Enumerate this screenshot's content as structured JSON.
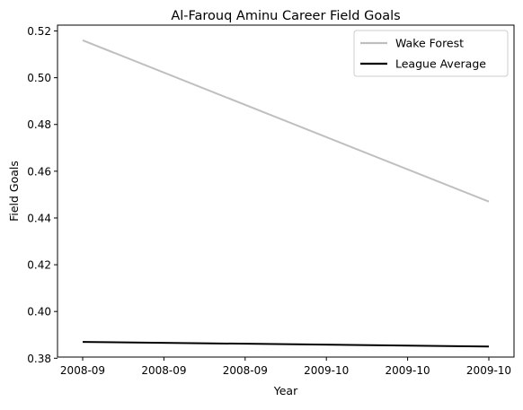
{
  "chart_data": {
    "type": "line",
    "title": "Al-Farouq Aminu Career Field Goals",
    "xlabel": "Year",
    "ylabel": "Field Goals",
    "x": [
      "2008-09",
      "2009-10"
    ],
    "x_tick_labels": [
      "2008-09",
      "2008-09",
      "2008-09",
      "2009-10",
      "2009-10",
      "2009-10"
    ],
    "y_tick_labels": [
      "0.38",
      "0.40",
      "0.42",
      "0.44",
      "0.46",
      "0.48",
      "0.50",
      "0.52"
    ],
    "y_ticks": [
      0.38,
      0.4,
      0.42,
      0.44,
      0.46,
      0.48,
      0.5,
      0.52
    ],
    "ylim": [
      0.3805,
      0.5225
    ],
    "grid": false,
    "legend_position": "top-right",
    "series": [
      {
        "name": "Wake Forest",
        "values": [
          0.516,
          0.447
        ],
        "color": "#bfbfbf"
      },
      {
        "name": "League Average",
        "values": [
          0.387,
          0.385
        ],
        "color": "#000000"
      }
    ]
  }
}
